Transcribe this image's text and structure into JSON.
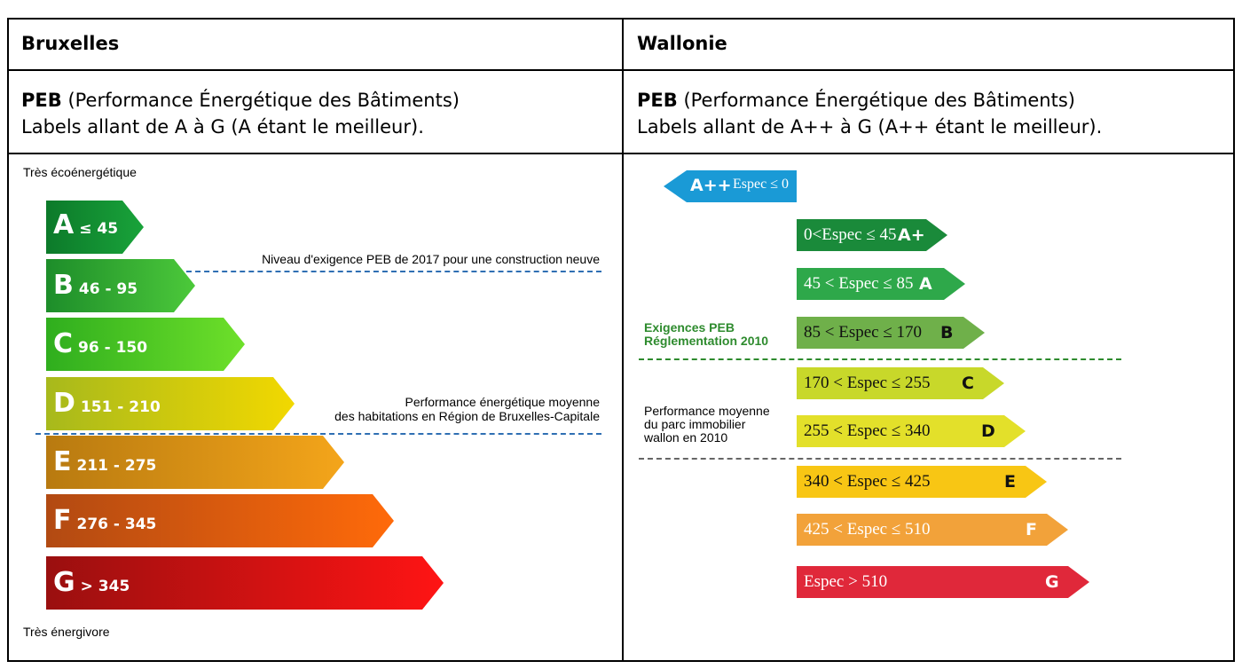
{
  "columns": [
    {
      "region": "Bruxelles",
      "peb_title": "PEB",
      "peb_full": "(Performance Énergétique des Bâtiments)",
      "labels_text": "Labels allant de A à G (A étant le meilleur).",
      "top_caption": "Très écoénergétique",
      "bottom_caption": "Très énergivore",
      "classes": [
        {
          "letter": "A",
          "range": "≤ 45",
          "color_start": "#0c7a2a",
          "color_end": "#19a33a"
        },
        {
          "letter": "B",
          "range": "46 - 95",
          "color_start": "#1d8d2a",
          "color_end": "#4cc93a"
        },
        {
          "letter": "C",
          "range": "96 - 150",
          "color_start": "#2fae1e",
          "color_end": "#6ee02a"
        },
        {
          "letter": "D",
          "range": "151 - 210",
          "color_start": "#a7b91c",
          "color_end": "#f2d800"
        },
        {
          "letter": "E",
          "range": "211 - 275",
          "color_start": "#b87a10",
          "color_end": "#f4a51a"
        },
        {
          "letter": "F",
          "range": "276 - 345",
          "color_start": "#b24a12",
          "color_end": "#ff6a0a"
        },
        {
          "letter": "G",
          "range": "> 345",
          "color_start": "#9a0f0f",
          "color_end": "#ff1414"
        }
      ],
      "note_2017": "Niveau d'exigence PEB de 2017 pour une construction neuve",
      "note_avg_line1": "Performance énergétique moyenne",
      "note_avg_line2": "des habitations en Région de Bruxelles-Capitale"
    },
    {
      "region": "Wallonie",
      "peb_title": "PEB",
      "peb_full": "(Performance Énergétique des Bâtiments)",
      "labels_text": "Labels allant de A++ à G (A++ étant le meilleur).",
      "classes": [
        {
          "letter": "A++",
          "range": "Espec ≤ 0",
          "color": "#1a9ad6"
        },
        {
          "letter": "A+",
          "range": "0<Espec ≤ 45",
          "color": "#1a8a3a"
        },
        {
          "letter": "A",
          "range": "45 < Espec ≤ 85",
          "color": "#2ea84a"
        },
        {
          "letter": "B",
          "range": "85 < Espec ≤ 170",
          "color": "#6fb04a"
        },
        {
          "letter": "C",
          "range": "170 < Espec ≤ 255",
          "color": "#c8d82a"
        },
        {
          "letter": "D",
          "range": "255 < Espec ≤ 340",
          "color": "#e3e02a"
        },
        {
          "letter": "E",
          "range": "340 < Espec ≤ 425",
          "color": "#f8c614"
        },
        {
          "letter": "F",
          "range": "425 < Espec ≤ 510",
          "color": "#f2a23a"
        },
        {
          "letter": "G",
          "range": "Espec > 510",
          "color": "#e0283a"
        }
      ],
      "note_exig_line1": "Exigences PEB",
      "note_exig_line2": "Réglementation 2010",
      "note_perf_line1": "Performance moyenne",
      "note_perf_line2": "du parc immobilier",
      "note_perf_line3": "wallon en 2010"
    }
  ]
}
